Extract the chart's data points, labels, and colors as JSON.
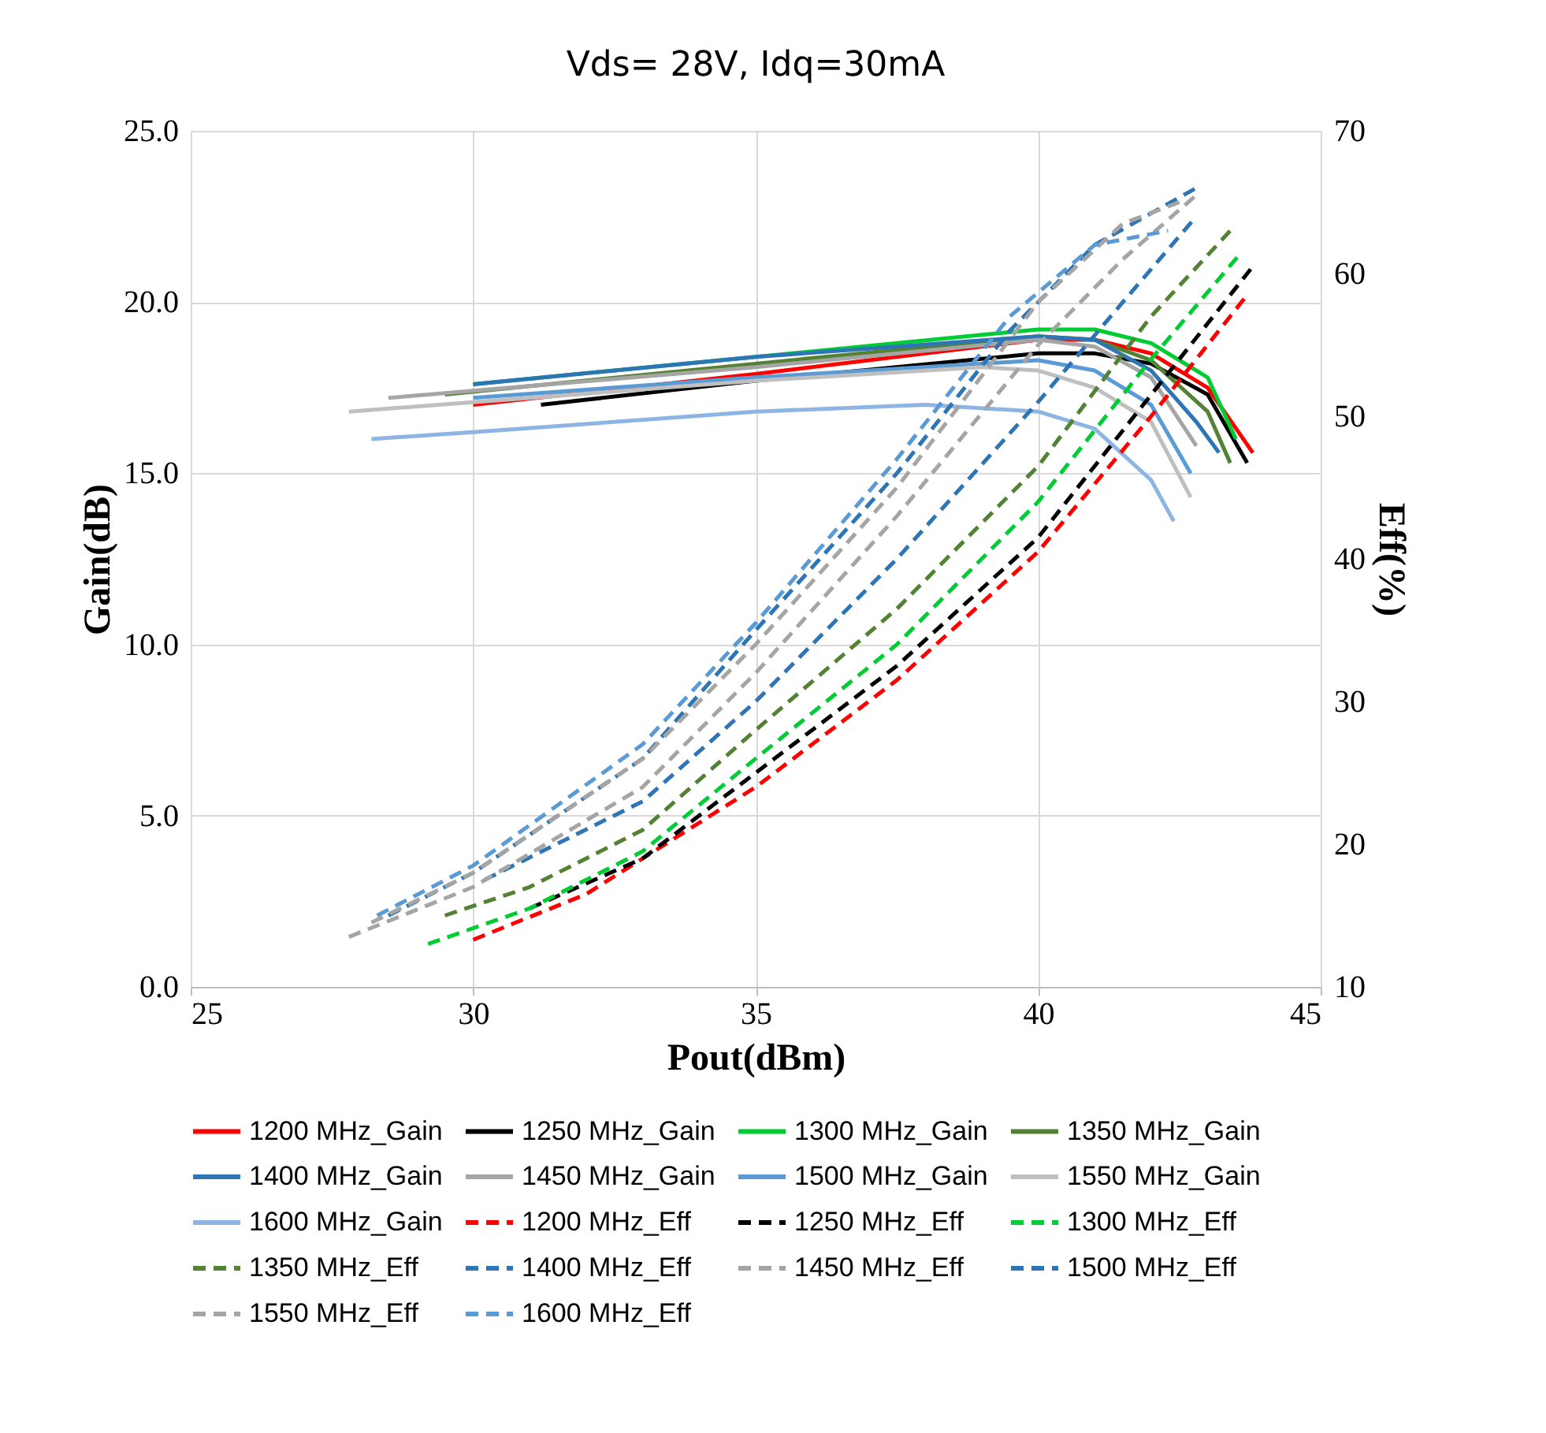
{
  "chart_data": {
    "type": "line",
    "title": "Vds= 28V, Idq=30mA",
    "xlabel": "Pout(dBm)",
    "ylabel": "Gain(dB)",
    "y2label": "Eff(%)",
    "xlim": [
      25,
      45
    ],
    "xticks": [
      25,
      30,
      35,
      40,
      45
    ],
    "ylim": [
      0,
      25
    ],
    "yticks": [
      {
        "value": 0,
        "label": "0.0"
      },
      {
        "value": 5,
        "label": "5.0"
      },
      {
        "value": 10,
        "label": "10.0"
      },
      {
        "value": 15,
        "label": "15.0"
      },
      {
        "value": 20,
        "label": "20.0"
      },
      {
        "value": 25,
        "label": "25.0"
      }
    ],
    "y2lim": [
      10,
      70
    ],
    "y2ticks": [
      10,
      20,
      30,
      40,
      50,
      60,
      70
    ],
    "grid": true,
    "legend": "bottom",
    "marker": "none",
    "series": [
      {
        "name": "1200 MHz_Gain",
        "color": "#ff0000",
        "line_style": "solid",
        "x": [
          30,
          35,
          40,
          41,
          42,
          43,
          43.8
        ],
        "values": [
          17.0,
          17.9,
          18.9,
          18.9,
          18.5,
          17.5,
          15.6
        ]
      },
      {
        "name": "1250 MHz_Gain",
        "color": "#000000",
        "line_style": "solid",
        "x": [
          31.2,
          35,
          40,
          41,
          42,
          43,
          43.7
        ],
        "values": [
          17.0,
          17.7,
          18.5,
          18.5,
          18.2,
          17.3,
          15.3
        ]
      },
      {
        "name": "1300 MHz_Gain",
        "color": "#00cc33",
        "line_style": "solid",
        "x": [
          30,
          35,
          40,
          41,
          42,
          43,
          43.5
        ],
        "values": [
          17.6,
          18.4,
          19.2,
          19.2,
          18.8,
          17.8,
          16.0
        ]
      },
      {
        "name": "1350 MHz_Gain",
        "color": "#548235",
        "line_style": "solid",
        "x": [
          29.5,
          35,
          40,
          41,
          42,
          43,
          43.4
        ],
        "values": [
          17.3,
          18.2,
          19.0,
          18.9,
          18.3,
          16.8,
          15.3
        ]
      },
      {
        "name": "1400 MHz_Gain",
        "color": "#2e75b6",
        "line_style": "solid",
        "x": [
          30,
          35,
          40,
          41,
          42,
          42.8,
          43.2
        ],
        "values": [
          17.6,
          18.4,
          19.0,
          18.9,
          18.0,
          16.5,
          15.6
        ]
      },
      {
        "name": "1450 MHz_Gain",
        "color": "#a5a5a5",
        "line_style": "solid",
        "x": [
          28.5,
          35,
          40,
          41,
          42,
          42.8
        ],
        "values": [
          17.2,
          18.1,
          18.9,
          18.7,
          17.8,
          15.8
        ]
      },
      {
        "name": "1500 MHz_Gain",
        "color": "#5b9bd5",
        "line_style": "solid",
        "x": [
          30,
          35,
          40,
          41,
          42,
          42.7
        ],
        "values": [
          17.2,
          17.8,
          18.3,
          18.0,
          17.0,
          15.0
        ]
      },
      {
        "name": "1550 MHz_Gain",
        "color": "#bfbfbf",
        "line_style": "solid",
        "x": [
          27.8,
          35,
          39,
          40,
          41,
          42,
          42.7
        ],
        "values": [
          16.8,
          17.7,
          18.1,
          18.0,
          17.5,
          16.5,
          14.3
        ]
      },
      {
        "name": "1600 MHz_Gain",
        "color": "#8db4e2",
        "line_style": "solid",
        "x": [
          28.2,
          30,
          35,
          38,
          40,
          41,
          42,
          42.4
        ],
        "values": [
          16.0,
          16.2,
          16.8,
          17.0,
          16.8,
          16.3,
          14.8,
          13.6
        ]
      },
      {
        "name": "1200 MHz_Eff",
        "color": "#ff0000",
        "line_style": "dashed",
        "axis": "y2",
        "x": [
          30,
          32,
          35,
          37.5,
          40,
          42,
          43.7
        ],
        "values": [
          13.3,
          16.5,
          24,
          31.5,
          40.5,
          50,
          58.5
        ]
      },
      {
        "name": "1250 MHz_Eff",
        "color": "#000000",
        "line_style": "dashed",
        "axis": "y2",
        "x": [
          31,
          33,
          35,
          37.5,
          40,
          42,
          43.8
        ],
        "values": [
          15.5,
          19,
          25,
          32.5,
          41.5,
          51.5,
          60.5
        ]
      },
      {
        "name": "1300 MHz_Eff",
        "color": "#00cc33",
        "line_style": "dashed",
        "axis": "y2",
        "x": [
          29.2,
          31,
          33,
          35,
          37.5,
          40,
          42,
          43.6
        ],
        "values": [
          13,
          15.5,
          19.5,
          26,
          34,
          44,
          54,
          61.5
        ]
      },
      {
        "name": "1350 MHz_Eff",
        "color": "#548235",
        "line_style": "dashed",
        "axis": "y2",
        "x": [
          29.5,
          31,
          33,
          35,
          37.5,
          40,
          42,
          43.4
        ],
        "values": [
          15,
          17,
          21,
          28,
          36.5,
          46.5,
          57,
          63
        ]
      },
      {
        "name": "1400 MHz_Eff",
        "color": "#2e75b6",
        "line_style": "dashed",
        "axis": "y2",
        "x": [
          30.2,
          33,
          35,
          37.5,
          40,
          41.5,
          42.8
        ],
        "values": [
          17.5,
          23,
          30,
          40,
          51,
          58,
          64
        ]
      },
      {
        "name": "1450 MHz_Eff",
        "color": "#a5a5a5",
        "line_style": "dashed",
        "axis": "y2",
        "x": [
          27.8,
          30,
          33,
          35,
          37.5,
          40,
          41.5,
          42.8
        ],
        "values": [
          13.5,
          17,
          24,
          32,
          43,
          55,
          61,
          65.5
        ]
      },
      {
        "name": "1500 MHz_Eff",
        "color": "#2e75b6",
        "line_style": "dashed",
        "axis": "y2",
        "x": [
          28.5,
          30,
          33,
          35,
          37.5,
          39.5,
          41,
          42.8
        ],
        "values": [
          15,
          18,
          26,
          35,
          46,
          56,
          62,
          66
        ]
      },
      {
        "name": "1550 MHz_Eff",
        "color": "#a5a5a5",
        "line_style": "dashed",
        "axis": "y2",
        "x": [
          28.2,
          30,
          33,
          35,
          37.5,
          40,
          41.5,
          42.5
        ],
        "values": [
          14.5,
          18,
          26,
          34,
          45,
          58,
          63.5,
          65
        ]
      },
      {
        "name": "1600 MHz_Eff",
        "color": "#5b9bd5",
        "line_style": "dashed",
        "axis": "y2",
        "x": [
          28.3,
          30,
          33,
          35,
          37.5,
          39.5,
          41,
          42.3
        ],
        "values": [
          15,
          18.5,
          27,
          35.5,
          47,
          57,
          62,
          63
        ]
      }
    ]
  }
}
